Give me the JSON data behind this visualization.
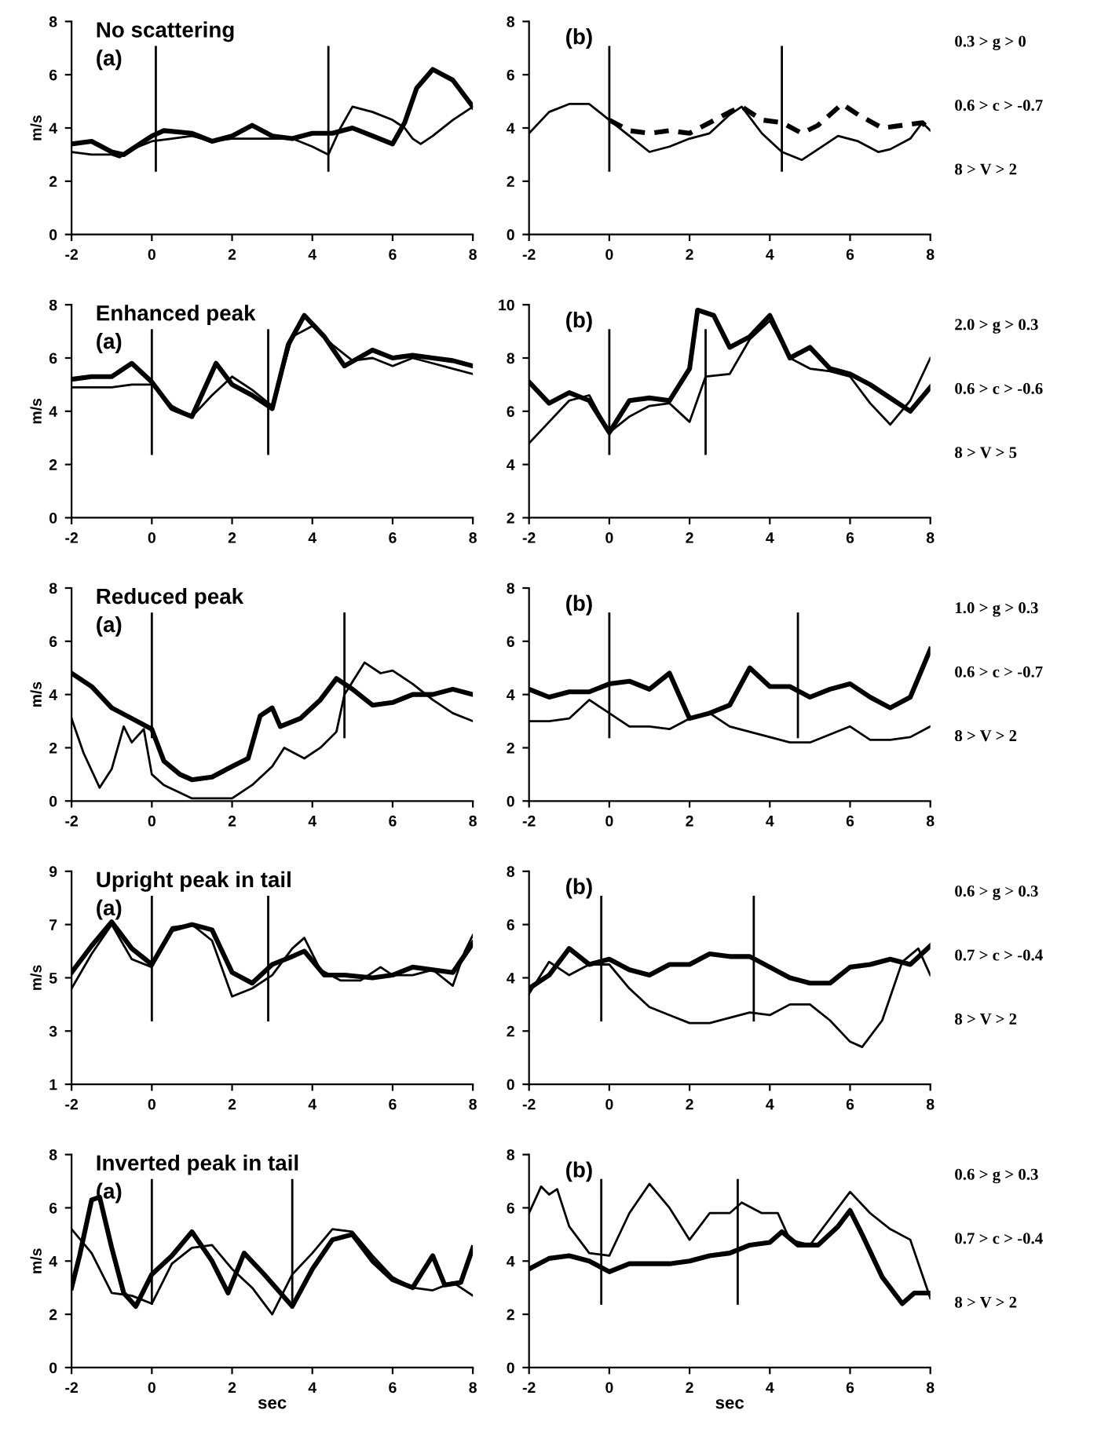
{
  "chart_data": [
    {
      "type": "line",
      "title": "No scattering",
      "ylabel": "m/s",
      "annotations": [
        "(a)"
      ],
      "xlim": [
        -2,
        8
      ],
      "xticks": [
        -2,
        0,
        2,
        4,
        6,
        8
      ],
      "ylim": [
        0,
        8
      ],
      "yticks": [
        0,
        2,
        4,
        6,
        8
      ],
      "grid": false,
      "legend": false,
      "marker": "none",
      "ref_lines": [
        {
          "axis": "x",
          "value": 0.1,
          "color": "#000000"
        },
        {
          "axis": "x",
          "value": 4.4,
          "color": "#000000"
        }
      ],
      "series": [
        {
          "color": "#000000",
          "x": [
            -2,
            -1.5,
            -1,
            -0.8,
            -0.5,
            0,
            0.5,
            1,
            1.5,
            2,
            2.5,
            3,
            3.5,
            4,
            4.4,
            4.7,
            5,
            5.5,
            6,
            6.3,
            6.5,
            6.7,
            7,
            7.5,
            8
          ],
          "values": [
            3.1,
            3.0,
            3.0,
            2.9,
            3.2,
            3.5,
            3.6,
            3.7,
            3.5,
            3.6,
            3.6,
            3.6,
            3.6,
            3.3,
            3.0,
            4.0,
            4.8,
            4.6,
            4.3,
            4.0,
            3.6,
            3.4,
            3.7,
            4.3,
            4.8
          ]
        },
        {
          "color": "#000000",
          "x": [
            -2,
            -1.5,
            -1,
            -0.7,
            -0.3,
            0,
            0.3,
            1,
            1.5,
            2,
            2.5,
            3,
            3.5,
            4,
            4.5,
            5,
            5.5,
            6,
            6.3,
            6.6,
            7,
            7.5,
            8
          ],
          "values": [
            3.4,
            3.5,
            3.1,
            3.0,
            3.4,
            3.7,
            3.9,
            3.8,
            3.5,
            3.7,
            4.1,
            3.7,
            3.6,
            3.8,
            3.8,
            4.0,
            3.7,
            3.4,
            4.2,
            5.5,
            6.2,
            5.8,
            4.8
          ]
        }
      ]
    },
    {
      "type": "line",
      "annotations": [
        "(b)",
        "0.3 > g > 0",
        "0.6 > c > -0.7",
        "8 > V > 2"
      ],
      "xlim": [
        -2,
        8
      ],
      "xticks": [
        -2,
        0,
        2,
        4,
        6,
        8
      ],
      "ylim": [
        0,
        8
      ],
      "yticks": [
        0,
        2,
        4,
        6,
        8
      ],
      "grid": false,
      "legend": false,
      "marker": "none",
      "ref_lines": [
        {
          "axis": "x",
          "value": 0,
          "color": "#000000"
        },
        {
          "axis": "x",
          "value": 4.3,
          "color": "#000000"
        }
      ],
      "series": [
        {
          "color": "#000000",
          "x": [
            -2,
            -1.5,
            -1,
            -0.5,
            0,
            0.5,
            1,
            1.5,
            2,
            2.5,
            3,
            3.3,
            3.8,
            4.3,
            4.8,
            5.2,
            5.7,
            6.2,
            6.7,
            7,
            7.5,
            7.8,
            8
          ],
          "values": [
            3.8,
            4.6,
            4.9,
            4.9,
            4.3,
            3.7,
            3.1,
            3.3,
            3.6,
            3.8,
            4.5,
            4.8,
            3.8,
            3.1,
            2.8,
            3.2,
            3.7,
            3.5,
            3.1,
            3.2,
            3.6,
            4.2,
            3.9
          ]
        },
        {
          "color": "#000000",
          "line_style": "dashed",
          "x": [
            0,
            0.5,
            1,
            1.5,
            2,
            2.5,
            3,
            3.3,
            3.8,
            4.3,
            4.8,
            5.2,
            5.8,
            6.2,
            6.8,
            7.3,
            7.8,
            8
          ],
          "values": [
            4.3,
            3.9,
            3.8,
            3.9,
            3.8,
            4.2,
            4.6,
            4.8,
            4.3,
            4.2,
            3.8,
            4.1,
            4.9,
            4.5,
            4.0,
            4.1,
            4.2,
            3.9
          ]
        }
      ]
    },
    {
      "type": "line",
      "title": "Enhanced peak",
      "ylabel": "m/s",
      "annotations": [
        "(a)"
      ],
      "xlim": [
        -2,
        8
      ],
      "xticks": [
        -2,
        0,
        2,
        4,
        6,
        8
      ],
      "ylim": [
        0,
        8
      ],
      "yticks": [
        0,
        2,
        4,
        6,
        8
      ],
      "grid": false,
      "legend": false,
      "marker": "none",
      "ref_lines": [
        {
          "axis": "x",
          "value": 0,
          "color": "#000000"
        },
        {
          "axis": "x",
          "value": 2.9,
          "color": "#000000"
        }
      ],
      "series": [
        {
          "color": "#000000",
          "x": [
            -2,
            -1.5,
            -1,
            -0.5,
            0,
            0.5,
            1,
            1.5,
            2,
            2.5,
            3,
            3.5,
            4,
            4.5,
            5,
            5.5,
            6,
            6.5,
            7,
            7.5,
            8
          ],
          "values": [
            4.9,
            4.9,
            4.9,
            5.0,
            5.0,
            4.2,
            3.8,
            4.6,
            5.3,
            4.8,
            4.2,
            6.8,
            7.2,
            6.5,
            5.9,
            6.0,
            5.7,
            6.0,
            5.8,
            5.6,
            5.4
          ]
        },
        {
          "color": "#000000",
          "x": [
            -2,
            -1.5,
            -1,
            -0.5,
            0,
            0.5,
            1,
            1.6,
            2,
            2.5,
            3,
            3.4,
            3.8,
            4.3,
            4.8,
            5.5,
            6,
            6.5,
            7,
            7.5,
            8
          ],
          "values": [
            5.2,
            5.3,
            5.3,
            5.8,
            5.1,
            4.1,
            3.8,
            5.8,
            5.0,
            4.6,
            4.1,
            6.5,
            7.6,
            6.8,
            5.7,
            6.3,
            6.0,
            6.1,
            6.0,
            5.9,
            5.7
          ]
        }
      ]
    },
    {
      "type": "line",
      "annotations": [
        "(b)",
        "2.0 > g > 0.3",
        "0.6 > c > -0.6",
        "8 > V > 5"
      ],
      "xlim": [
        -2,
        8
      ],
      "xticks": [
        -2,
        0,
        2,
        4,
        6,
        8
      ],
      "ylim": [
        2,
        10
      ],
      "yticks": [
        2,
        4,
        6,
        8,
        10
      ],
      "grid": false,
      "legend": false,
      "marker": "none",
      "ref_lines": [
        {
          "axis": "x",
          "value": 0,
          "color": "#000000"
        },
        {
          "axis": "x",
          "value": 2.4,
          "color": "#000000"
        }
      ],
      "series": [
        {
          "color": "#000000",
          "x": [
            -2,
            -1.5,
            -1,
            -0.5,
            0,
            0.5,
            1,
            1.5,
            2,
            2.4,
            3,
            3.5,
            4,
            4.5,
            5,
            5.5,
            6,
            6.5,
            7,
            7.5,
            8
          ],
          "values": [
            4.8,
            5.6,
            6.4,
            6.6,
            5.2,
            5.8,
            6.2,
            6.3,
            5.6,
            7.3,
            7.4,
            8.7,
            9.4,
            8.0,
            7.6,
            7.5,
            7.3,
            6.3,
            5.5,
            6.4,
            8.0
          ]
        },
        {
          "color": "#000000",
          "x": [
            -2,
            -1.5,
            -1,
            -0.5,
            0,
            0.5,
            1,
            1.5,
            2,
            2.2,
            2.6,
            3,
            3.5,
            4,
            4.5,
            5,
            5.5,
            6,
            6.5,
            7,
            7.5,
            8
          ],
          "values": [
            7.1,
            6.3,
            6.7,
            6.4,
            5.2,
            6.4,
            6.5,
            6.4,
            7.6,
            9.8,
            9.6,
            8.4,
            8.8,
            9.6,
            8.0,
            8.4,
            7.6,
            7.4,
            7.0,
            6.5,
            6.0,
            6.9
          ]
        }
      ]
    },
    {
      "type": "line",
      "title": "Reduced peak",
      "ylabel": "m/s",
      "annotations": [
        "(a)"
      ],
      "xlim": [
        -2,
        8
      ],
      "xticks": [
        -2,
        0,
        2,
        4,
        6,
        8
      ],
      "ylim": [
        0,
        8
      ],
      "yticks": [
        0,
        2,
        4,
        6,
        8
      ],
      "grid": false,
      "legend": false,
      "marker": "none",
      "ref_lines": [
        {
          "axis": "x",
          "value": 0,
          "color": "#000000"
        },
        {
          "axis": "x",
          "value": 4.8,
          "color": "#000000"
        }
      ],
      "series": [
        {
          "color": "#000000",
          "x": [
            -2,
            -1.7,
            -1.3,
            -1,
            -0.7,
            -0.5,
            -0.2,
            0,
            0.3,
            1,
            2,
            2.5,
            3,
            3.3,
            3.8,
            4.2,
            4.6,
            4.8,
            5.3,
            5.7,
            6,
            6.5,
            7,
            7.5,
            8
          ],
          "values": [
            3.1,
            1.8,
            0.5,
            1.2,
            2.8,
            2.2,
            2.7,
            1.0,
            0.6,
            0.1,
            0.1,
            0.6,
            1.3,
            2.0,
            1.6,
            2.0,
            2.6,
            4.0,
            5.2,
            4.8,
            4.9,
            4.4,
            3.8,
            3.3,
            3.0
          ]
        },
        {
          "color": "#000000",
          "x": [
            -2,
            -1.5,
            -1,
            -0.5,
            0,
            0.3,
            0.7,
            1,
            1.5,
            2,
            2.4,
            2.7,
            3,
            3.2,
            3.7,
            4.2,
            4.6,
            5,
            5.5,
            6,
            6.5,
            7,
            7.5,
            8
          ],
          "values": [
            4.8,
            4.3,
            3.5,
            3.1,
            2.7,
            1.5,
            1.0,
            0.8,
            0.9,
            1.3,
            1.6,
            3.2,
            3.5,
            2.8,
            3.1,
            3.8,
            4.6,
            4.2,
            3.6,
            3.7,
            4.0,
            4.0,
            4.2,
            4.0
          ]
        }
      ]
    },
    {
      "type": "line",
      "annotations": [
        "(b)",
        "1.0 > g > 0.3",
        "0.6 > c > -0.7",
        "8 > V > 2"
      ],
      "xlim": [
        -2,
        8
      ],
      "xticks": [
        -2,
        0,
        2,
        4,
        6,
        8
      ],
      "ylim": [
        0,
        8
      ],
      "yticks": [
        0,
        2,
        4,
        6,
        8
      ],
      "grid": false,
      "legend": false,
      "marker": "none",
      "ref_lines": [
        {
          "axis": "x",
          "value": 0,
          "color": "#000000"
        },
        {
          "axis": "x",
          "value": 4.7,
          "color": "#000000"
        }
      ],
      "series": [
        {
          "color": "#000000",
          "x": [
            -2,
            -1.5,
            -1,
            -0.5,
            0,
            0.5,
            1,
            1.5,
            2,
            2.5,
            3,
            3.5,
            4,
            4.5,
            5,
            5.5,
            6,
            6.5,
            7,
            7.5,
            8
          ],
          "values": [
            3.0,
            3.0,
            3.1,
            3.8,
            3.3,
            2.8,
            2.8,
            2.7,
            3.1,
            3.3,
            2.8,
            2.6,
            2.4,
            2.2,
            2.2,
            2.5,
            2.8,
            2.3,
            2.3,
            2.4,
            2.8
          ]
        },
        {
          "color": "#000000",
          "x": [
            -2,
            -1.5,
            -1,
            -0.5,
            0,
            0.5,
            1,
            1.5,
            2,
            2.5,
            3,
            3.5,
            4,
            4.5,
            5,
            5.5,
            6,
            6.5,
            7,
            7.5,
            8
          ],
          "values": [
            4.2,
            3.9,
            4.1,
            4.1,
            4.4,
            4.5,
            4.2,
            4.8,
            3.1,
            3.3,
            3.6,
            5.0,
            4.3,
            4.3,
            3.9,
            4.2,
            4.4,
            3.9,
            3.5,
            3.9,
            5.7
          ]
        }
      ]
    },
    {
      "type": "line",
      "title": "Upright peak in tail",
      "ylabel": "m/s",
      "annotations": [
        "(a)"
      ],
      "xlim": [
        -2,
        8
      ],
      "xticks": [
        -2,
        0,
        2,
        4,
        6,
        8
      ],
      "ylim": [
        1,
        9
      ],
      "yticks": [
        1,
        3,
        5,
        7,
        9
      ],
      "grid": false,
      "legend": false,
      "marker": "none",
      "ref_lines": [
        {
          "axis": "x",
          "value": 0,
          "color": "#000000"
        },
        {
          "axis": "x",
          "value": 2.9,
          "color": "#000000"
        }
      ],
      "series": [
        {
          "color": "#000000",
          "x": [
            -2,
            -1.5,
            -1,
            -0.5,
            0,
            0.5,
            1,
            1.5,
            2,
            2.5,
            3,
            3.5,
            3.8,
            4.2,
            4.7,
            5.2,
            5.7,
            6,
            6.5,
            7,
            7.5,
            7.8,
            8
          ],
          "values": [
            4.6,
            5.9,
            7.0,
            5.7,
            5.4,
            6.9,
            7.0,
            6.4,
            4.3,
            4.6,
            5.1,
            6.1,
            6.5,
            5.3,
            4.9,
            4.9,
            5.4,
            5.1,
            5.1,
            5.3,
            4.7,
            6.0,
            6.6
          ]
        },
        {
          "color": "#000000",
          "x": [
            -2,
            -1.5,
            -1,
            -0.5,
            0,
            0.5,
            1,
            1.5,
            2,
            2.5,
            3,
            3.5,
            3.8,
            4.3,
            4.8,
            5.5,
            6,
            6.5,
            7,
            7.5,
            8
          ],
          "values": [
            5.2,
            6.2,
            7.1,
            6.1,
            5.5,
            6.8,
            7.0,
            6.8,
            5.2,
            4.8,
            5.5,
            5.8,
            6.0,
            5.1,
            5.1,
            5.0,
            5.1,
            5.4,
            5.3,
            5.2,
            6.3
          ]
        }
      ]
    },
    {
      "type": "line",
      "annotations": [
        "(b)",
        "0.6 > g > 0.3",
        "0.7 > c > -0.4",
        "8 > V > 2"
      ],
      "xlim": [
        -2,
        8
      ],
      "xticks": [
        -2,
        0,
        2,
        4,
        6,
        8
      ],
      "ylim": [
        0,
        8
      ],
      "yticks": [
        0,
        2,
        4,
        6,
        8
      ],
      "grid": false,
      "legend": false,
      "marker": "none",
      "ref_lines": [
        {
          "axis": "x",
          "value": -0.2,
          "color": "#000000"
        },
        {
          "axis": "x",
          "value": 3.6,
          "color": "#000000"
        }
      ],
      "series": [
        {
          "color": "#000000",
          "x": [
            -2,
            -1.5,
            -1,
            -0.5,
            0,
            0.5,
            1,
            1.5,
            2,
            2.5,
            3,
            3.5,
            4,
            4.5,
            5,
            5.5,
            6,
            6.3,
            6.8,
            7.3,
            7.7,
            8
          ],
          "values": [
            3.4,
            4.6,
            4.1,
            4.5,
            4.5,
            3.6,
            2.9,
            2.6,
            2.3,
            2.3,
            2.5,
            2.7,
            2.6,
            3.0,
            3.0,
            2.4,
            1.6,
            1.4,
            2.4,
            4.6,
            5.1,
            4.1
          ]
        },
        {
          "color": "#000000",
          "x": [
            -2,
            -1.5,
            -1,
            -0.5,
            0,
            0.5,
            1,
            1.5,
            2,
            2.5,
            3,
            3.5,
            4,
            4.5,
            5,
            5.5,
            6,
            6.5,
            7,
            7.5,
            8
          ],
          "values": [
            3.6,
            4.1,
            5.1,
            4.5,
            4.7,
            4.3,
            4.1,
            4.5,
            4.5,
            4.9,
            4.8,
            4.8,
            4.4,
            4.0,
            3.8,
            3.8,
            4.4,
            4.5,
            4.7,
            4.5,
            5.2
          ]
        }
      ]
    },
    {
      "type": "line",
      "title": "Inverted peak in tail",
      "ylabel": "m/s",
      "xlabel": "sec",
      "annotations": [
        "(a)"
      ],
      "xlim": [
        -2,
        8
      ],
      "xticks": [
        -2,
        0,
        2,
        4,
        6,
        8
      ],
      "ylim": [
        0,
        8
      ],
      "yticks": [
        0,
        2,
        4,
        6,
        8
      ],
      "grid": false,
      "legend": false,
      "marker": "none",
      "ref_lines": [
        {
          "axis": "x",
          "value": 0,
          "color": "#000000"
        },
        {
          "axis": "x",
          "value": 3.5,
          "color": "#000000"
        }
      ],
      "series": [
        {
          "color": "#000000",
          "x": [
            -2,
            -1.5,
            -1,
            -0.5,
            0,
            0.5,
            1,
            1.5,
            2,
            2.5,
            3,
            3.5,
            4,
            4.5,
            5,
            5.5,
            6,
            6.5,
            7,
            7.5,
            8
          ],
          "values": [
            5.2,
            4.3,
            2.8,
            2.7,
            2.4,
            3.9,
            4.5,
            4.6,
            3.7,
            3.0,
            2.0,
            3.5,
            4.3,
            5.2,
            5.1,
            4.2,
            3.4,
            3.0,
            2.9,
            3.2,
            2.7
          ]
        },
        {
          "color": "#000000",
          "x": [
            -2,
            -1.8,
            -1.5,
            -1.3,
            -1,
            -0.7,
            -0.4,
            0,
            0.5,
            1,
            1.5,
            1.9,
            2.3,
            2.8,
            3.5,
            4,
            4.5,
            5,
            5.5,
            6,
            6.5,
            7,
            7.3,
            7.7,
            8
          ],
          "values": [
            3.0,
            4.2,
            6.3,
            6.4,
            4.5,
            2.8,
            2.3,
            3.5,
            4.2,
            5.1,
            4.0,
            2.8,
            4.3,
            3.5,
            2.3,
            3.7,
            4.8,
            5.0,
            4.0,
            3.3,
            3.0,
            4.2,
            3.1,
            3.2,
            4.5
          ]
        }
      ]
    },
    {
      "type": "line",
      "xlabel": "sec",
      "annotations": [
        "(b)",
        "0.6 > g > 0.3",
        "0.7 > c > -0.4",
        "8 > V > 2"
      ],
      "xlim": [
        -2,
        8
      ],
      "xticks": [
        -2,
        0,
        2,
        4,
        6,
        8
      ],
      "ylim": [
        0,
        8
      ],
      "yticks": [
        0,
        2,
        4,
        6,
        8
      ],
      "grid": false,
      "legend": false,
      "marker": "none",
      "ref_lines": [
        {
          "axis": "x",
          "value": -0.2,
          "color": "#000000"
        },
        {
          "axis": "x",
          "value": 3.2,
          "color": "#000000"
        }
      ],
      "series": [
        {
          "color": "#000000",
          "x": [
            -2,
            -1.7,
            -1.5,
            -1.3,
            -1,
            -0.5,
            0,
            0.5,
            1,
            1.5,
            2,
            2.5,
            3,
            3.3,
            3.8,
            4.2,
            4.5,
            5,
            5.5,
            6,
            6.5,
            7,
            7.5,
            8
          ],
          "values": [
            5.8,
            6.8,
            6.5,
            6.7,
            5.3,
            4.3,
            4.2,
            5.8,
            6.9,
            6.0,
            4.8,
            5.8,
            5.8,
            6.2,
            5.8,
            5.8,
            4.8,
            4.6,
            5.6,
            6.6,
            5.8,
            5.2,
            4.8,
            2.6
          ]
        },
        {
          "color": "#000000",
          "x": [
            -2,
            -1.5,
            -1,
            -0.5,
            0,
            0.5,
            1,
            1.5,
            2,
            2.5,
            3,
            3.5,
            4,
            4.3,
            4.7,
            5.2,
            5.7,
            6,
            6.3,
            6.8,
            7.3,
            7.6,
            8
          ],
          "values": [
            3.7,
            4.1,
            4.2,
            4.0,
            3.6,
            3.9,
            3.9,
            3.9,
            4.0,
            4.2,
            4.3,
            4.6,
            4.7,
            5.1,
            4.6,
            4.6,
            5.3,
            5.9,
            5.0,
            3.4,
            2.4,
            2.8,
            2.8
          ]
        }
      ]
    }
  ]
}
